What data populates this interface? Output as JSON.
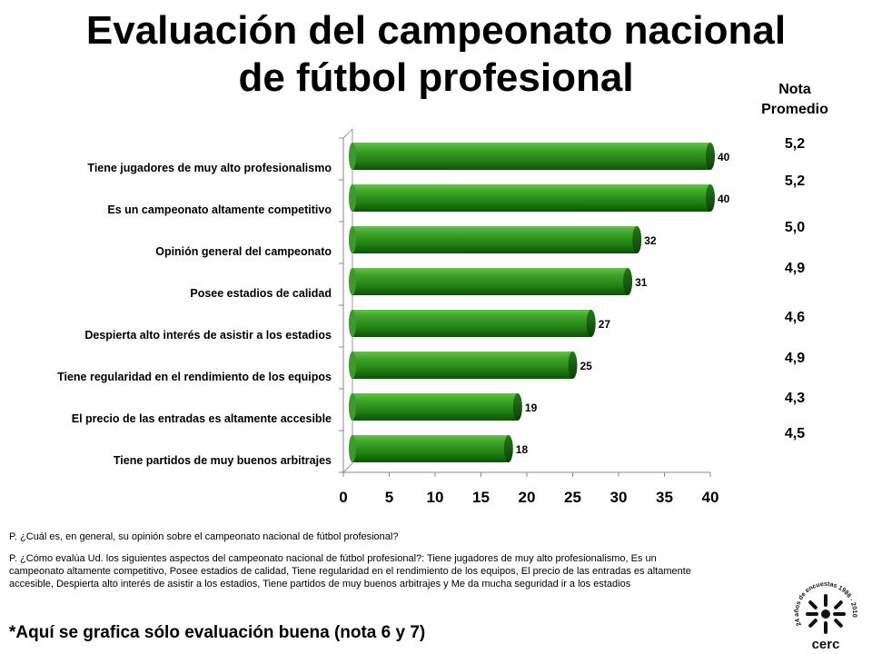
{
  "title_line1": "Evaluación del campeonato nacional",
  "title_line2": "de fútbol profesional",
  "nota": {
    "header_line1": "Nota",
    "header_line2": "Promedio",
    "values": [
      "5,2",
      "5,2",
      "5,0",
      "4,9",
      "4,6",
      "4,9",
      "4,3",
      "4,5"
    ]
  },
  "chart_data": {
    "type": "bar",
    "orientation": "horizontal",
    "categories": [
      "Tiene jugadores de muy alto profesionalismo",
      "Es un campeonato altamente competitivo",
      "Opinión general del campeonato",
      "Posee estadios de calidad",
      "Despierta alto interés de asistir a los estadios",
      "Tiene regularidad en el rendimiento de los equipos",
      "El precio de las entradas es altamente accesible",
      "Tiene partidos de muy buenos arbitrajes"
    ],
    "values": [
      40,
      40,
      32,
      31,
      27,
      25,
      19,
      18
    ],
    "xlim": [
      0,
      40
    ],
    "xticks": [
      0,
      5,
      10,
      15,
      20,
      25,
      30,
      35,
      40
    ],
    "bar_color": "#2a8a1a",
    "grid": false,
    "legend": "none"
  },
  "notes": {
    "q1": "P. ¿Cuál es, en general, su opinión sobre el campeonato nacional de fútbol profesional?",
    "q2": "P. ¿Cómo evalúa Ud. los siguientes aspectos del campeonato nacional de fútbol profesional?: Tiene jugadores de muy alto profesionalismo, Es un campeonato altamente competitivo, Posee estadios de calidad, Tiene regularidad en el rendimiento de los equipos, El precio de las entradas es altamente accesible, Despierta alto interés de asistir a los estadios, Tiene partidos de muy buenos arbitrajes y Me da mucha seguridad ir a los estadios"
  },
  "footer_note": "*Aquí se grafica sólo evaluación buena (nota 6 y 7)",
  "logo": {
    "name": "cerc",
    "ring_text": "24 años de encuestas 1986 - 2010"
  }
}
